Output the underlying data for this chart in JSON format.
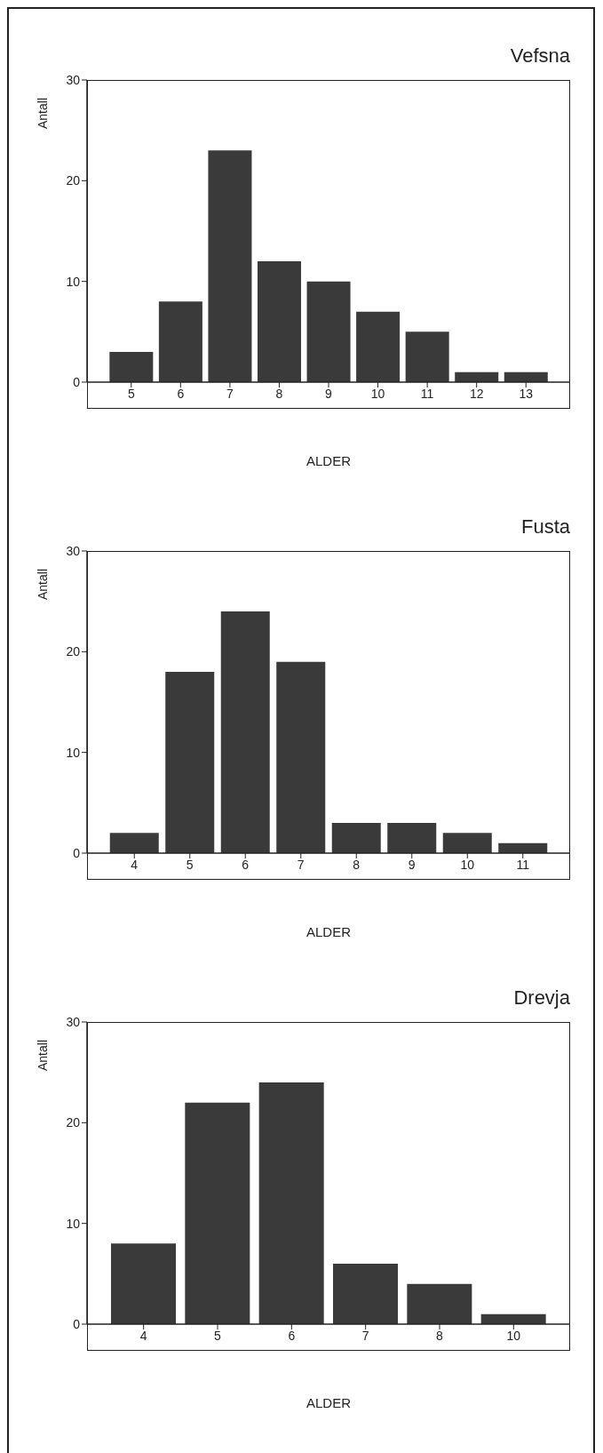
{
  "chart_data": [
    {
      "type": "bar",
      "title": "Vefsna",
      "xlabel": "ALDER",
      "ylabel": "Antall",
      "categories": [
        "5",
        "6",
        "7",
        "8",
        "9",
        "10",
        "11",
        "12",
        "13"
      ],
      "values": [
        3,
        8,
        23,
        12,
        10,
        7,
        5,
        1,
        1
      ],
      "color": "#3a3a3a",
      "ylim": [
        0,
        30
      ],
      "yticks": [
        0,
        10,
        20,
        30
      ]
    },
    {
      "type": "bar",
      "title": "Fusta",
      "xlabel": "ALDER",
      "ylabel": "Antall",
      "categories": [
        "4",
        "5",
        "6",
        "7",
        "8",
        "9",
        "10",
        "11"
      ],
      "values": [
        2,
        18,
        24,
        19,
        3,
        3,
        2,
        1
      ],
      "color": "#3a3a3a",
      "ylim": [
        0,
        30
      ],
      "yticks": [
        0,
        10,
        20,
        30
      ]
    },
    {
      "type": "bar",
      "title": "Drevja",
      "xlabel": "ALDER",
      "ylabel": "Antall",
      "categories": [
        "4",
        "5",
        "6",
        "7",
        "8",
        "10"
      ],
      "values": [
        8,
        22,
        24,
        6,
        4,
        1
      ],
      "color": "#3a3a3a",
      "ylim": [
        0,
        30
      ],
      "yticks": [
        0,
        10,
        20,
        30
      ]
    }
  ]
}
